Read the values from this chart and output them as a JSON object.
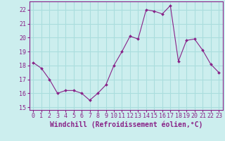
{
  "x": [
    0,
    1,
    2,
    3,
    4,
    5,
    6,
    7,
    8,
    9,
    10,
    11,
    12,
    13,
    14,
    15,
    16,
    17,
    18,
    19,
    20,
    21,
    22,
    23
  ],
  "y": [
    18.2,
    17.8,
    17.0,
    16.0,
    16.2,
    16.2,
    16.0,
    15.5,
    16.0,
    16.6,
    18.0,
    19.0,
    20.1,
    19.9,
    22.0,
    21.9,
    21.7,
    22.3,
    18.3,
    19.8,
    19.9,
    19.1,
    18.1,
    17.5
  ],
  "line_color": "#882288",
  "marker": "D",
  "marker_size": 2,
  "bg_color": "#cceeee",
  "grid_color": "#aadddd",
  "xlabel": "Windchill (Refroidissement éolien,°C)",
  "xlabel_color": "#882288",
  "tick_color": "#882288",
  "ylim": [
    14.8,
    22.6
  ],
  "xlim": [
    -0.5,
    23.5
  ],
  "yticks": [
    15,
    16,
    17,
    18,
    19,
    20,
    21,
    22
  ],
  "xticks": [
    0,
    1,
    2,
    3,
    4,
    5,
    6,
    7,
    8,
    9,
    10,
    11,
    12,
    13,
    14,
    15,
    16,
    17,
    18,
    19,
    20,
    21,
    22,
    23
  ],
  "xtick_labels": [
    "0",
    "1",
    "2",
    "3",
    "4",
    "5",
    "6",
    "7",
    "8",
    "9",
    "10",
    "11",
    "12",
    "13",
    "14",
    "15",
    "16",
    "17",
    "18",
    "19",
    "20",
    "21",
    "22",
    "23"
  ],
  "font_size": 6,
  "spine_color": "#882288",
  "xlabel_fontsize": 7,
  "xlabel_fontweight": "bold"
}
